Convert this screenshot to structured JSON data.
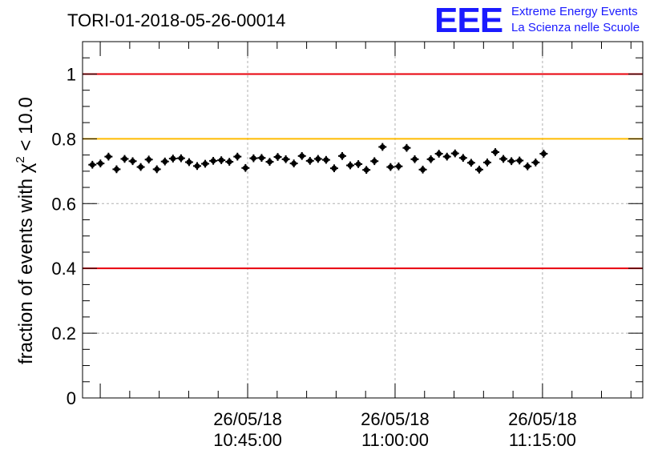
{
  "header": {
    "title": "TORI-01-2018-05-26-00014",
    "logo_letters": "EEE",
    "logo_line1": "Extreme Energy Events",
    "logo_line2": "La Scienza nelle Scuole"
  },
  "colors": {
    "logo": "#1a1aff",
    "limit_lines": "#e8000b",
    "reference_line": "#ffbb00",
    "markers": "#000000",
    "grid": "#b0b0b0"
  },
  "chart_data": {
    "type": "scatter",
    "title": "TORI-01-2018-05-26-00014",
    "ylabel_main": "fraction of events with χ",
    "ylabel_sup": "2",
    "ylabel_tail": " < 10.0",
    "xlabel": "",
    "x_units": "minutes after 10:45:00 on 26/05/18",
    "xlim": [
      -16.8,
      40.2
    ],
    "ylim": [
      0,
      1.1
    ],
    "grid": true,
    "yticks": [
      {
        "value": 0,
        "label": "0"
      },
      {
        "value": 0.2,
        "label": "0.2"
      },
      {
        "value": 0.4,
        "label": "0.4"
      },
      {
        "value": 0.6,
        "label": "0.6"
      },
      {
        "value": 0.8,
        "label": "0.8"
      },
      {
        "value": 1,
        "label": "1"
      }
    ],
    "xticks": [
      {
        "value": 0,
        "date": "26/05/18",
        "time": "10:45:00"
      },
      {
        "value": 15,
        "date": "26/05/18",
        "time": "11:00:00"
      },
      {
        "value": 30,
        "date": "26/05/18",
        "time": "11:15:00"
      }
    ],
    "hlines": [
      {
        "y": 1.0,
        "color": "#e8000b"
      },
      {
        "y": 0.8,
        "color": "#ffbb00"
      },
      {
        "y": 0.4,
        "color": "#e8000b"
      }
    ],
    "series": [
      {
        "x_start": -15.8,
        "x_step": 0.82,
        "y_error": 0.012,
        "values": [
          0.72,
          0.724,
          0.745,
          0.706,
          0.738,
          0.731,
          0.713,
          0.736,
          0.706,
          0.73,
          0.739,
          0.74,
          0.728,
          0.716,
          0.723,
          0.732,
          0.734,
          0.729,
          0.745,
          0.71,
          0.74,
          0.741,
          0.729,
          0.744,
          0.737,
          0.724,
          0.747,
          0.732,
          0.738,
          0.735,
          0.709,
          0.747,
          0.718,
          0.722,
          0.704,
          0.731,
          0.775,
          0.713,
          0.715,
          0.772,
          0.737,
          0.705,
          0.737,
          0.754,
          0.745,
          0.755,
          0.741,
          0.726,
          0.705,
          0.727,
          0.759,
          0.738,
          0.731,
          0.733,
          0.715,
          0.727,
          0.754
        ]
      }
    ]
  }
}
